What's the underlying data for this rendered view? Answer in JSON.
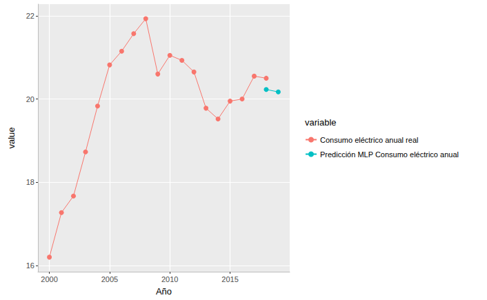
{
  "chart_data": {
    "type": "line",
    "x_label": "Año",
    "y_label": "value",
    "legend_title": "variable",
    "legend": "right",
    "grid": true,
    "marker": "circle",
    "x": [
      2000,
      2001,
      2002,
      2003,
      2004,
      2005,
      2006,
      2007,
      2008,
      2009,
      2010,
      2011,
      2012,
      2013,
      2014,
      2015,
      2016,
      2017,
      2018,
      2019
    ],
    "series": [
      {
        "name": "Consumo eléctrico anual real",
        "color": "#F8766D",
        "values": [
          16.2,
          17.27,
          17.67,
          18.73,
          19.83,
          20.82,
          21.15,
          21.57,
          21.93,
          20.6,
          21.05,
          20.93,
          20.65,
          19.78,
          19.52,
          19.95,
          20.0,
          20.55,
          20.5,
          null
        ]
      },
      {
        "name": "Predicción MLP Consumo eléctrico anual",
        "color": "#00BFC4",
        "values": [
          null,
          null,
          null,
          null,
          null,
          null,
          null,
          null,
          null,
          null,
          null,
          null,
          null,
          null,
          null,
          null,
          null,
          null,
          20.23,
          20.17
        ]
      }
    ],
    "xlim": [
      1999.05,
      2019.95
    ],
    "xticks": [
      2000,
      2005,
      2010,
      2015
    ],
    "ylim": [
      15.85,
      22.28
    ],
    "yticks": [
      16,
      18,
      20,
      22
    ]
  }
}
